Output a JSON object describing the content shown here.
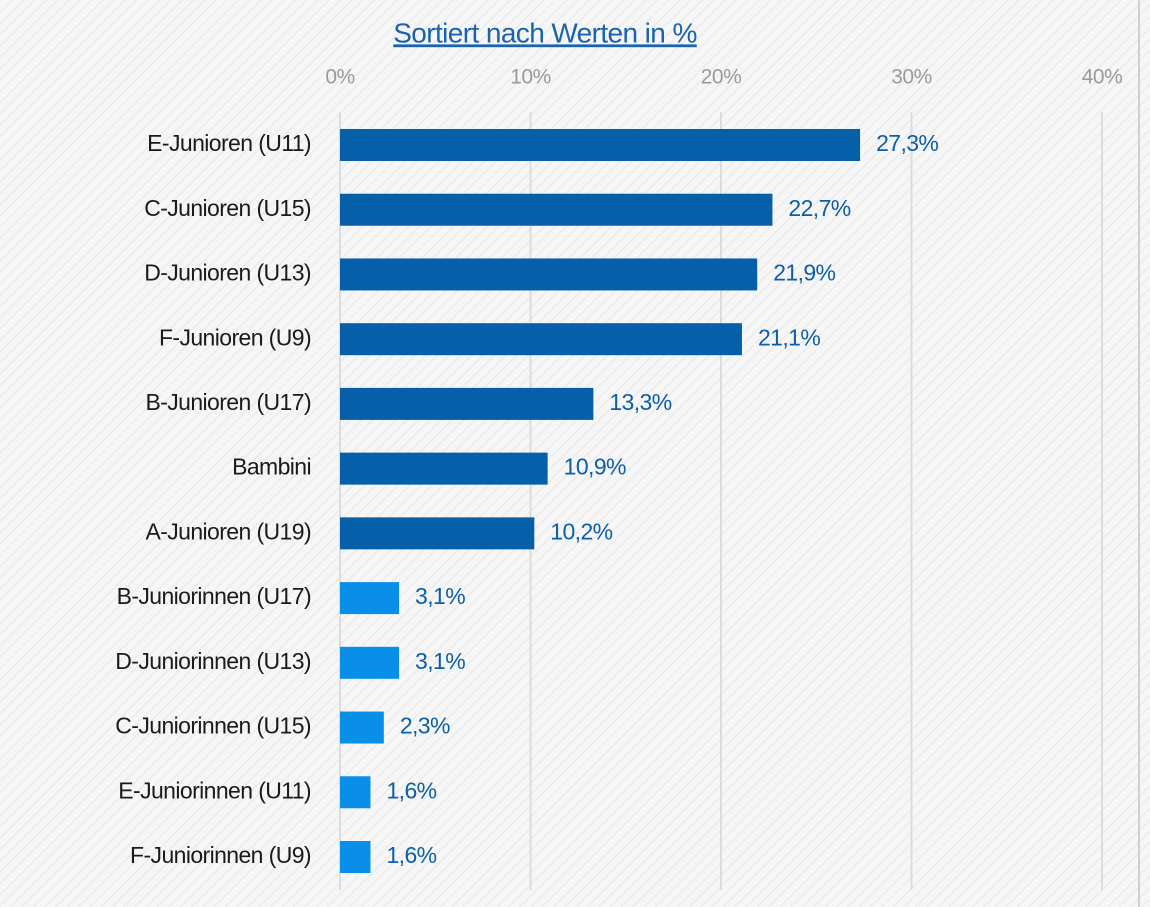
{
  "chart_data": {
    "type": "bar",
    "orientation": "horizontal",
    "title": "Sortiert nach Werten in %",
    "categories": [
      "E-Junioren (U11)",
      "C-Junioren (U15)",
      "D-Junioren (U13)",
      "F-Junioren (U9)",
      "B-Junioren (U17)",
      "Bambini",
      "A-Junioren (U19)",
      "B-Juniorinnen (U17)",
      "D-Juniorinnen (U13)",
      "C-Juniorinnen (U15)",
      "E-Juniorinnen (U11)",
      "F-Juniorinnen (U9)"
    ],
    "values": [
      27.3,
      22.7,
      21.9,
      21.1,
      13.3,
      10.9,
      10.2,
      3.1,
      3.1,
      2.3,
      1.6,
      1.6
    ],
    "value_labels": [
      "27,3%",
      "22,7%",
      "21,9%",
      "21,1%",
      "13,3%",
      "10,9%",
      "10,2%",
      "3,1%",
      "3,1%",
      "2,3%",
      "1,6%",
      "1,6%"
    ],
    "colors": [
      "#0560a9",
      "#0560a9",
      "#0560a9",
      "#0560a9",
      "#0560a9",
      "#0560a9",
      "#0560a9",
      "#0a8fe8",
      "#0a8fe8",
      "#0a8fe8",
      "#0a8fe8",
      "#0a8fe8"
    ],
    "xlim": [
      0,
      40
    ],
    "xticks": [
      {
        "value": 0,
        "label": "0%"
      },
      {
        "value": 10,
        "label": "10%"
      },
      {
        "value": 20,
        "label": "20%"
      },
      {
        "value": 30,
        "label": "30%"
      },
      {
        "value": 40,
        "label": "40%"
      }
    ],
    "grid": true
  }
}
